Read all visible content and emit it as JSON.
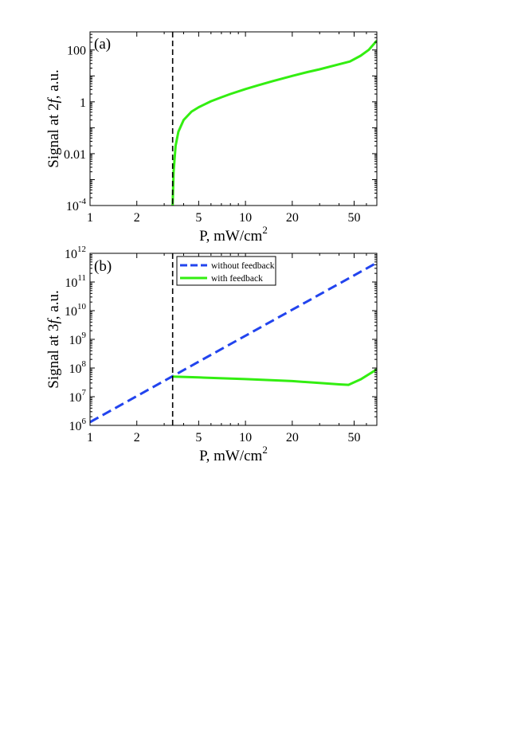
{
  "chart_data": [
    {
      "type": "line",
      "panel_label": "(a)",
      "xlabel": "P, mW/cm",
      "xlabel_sup": "2",
      "ylabel_pre": "Signal at 2",
      "ylabel_f": "f",
      "ylabel_post": ", a.u.",
      "x_scale": "log",
      "y_scale": "log",
      "xlim": [
        1,
        70
      ],
      "ylim": [
        0.0001,
        500
      ],
      "x_ticks": [
        1,
        2,
        5,
        10,
        20,
        50
      ],
      "x_ticklabels": [
        "1",
        "2",
        "5",
        "10",
        "20",
        "50"
      ],
      "y_ticks": [
        0.0001,
        0.01,
        1,
        100
      ],
      "y_ticklabels": [
        {
          "base": "10",
          "exp": "-4"
        },
        {
          "base": "0.01",
          "exp": ""
        },
        {
          "base": "1",
          "exp": ""
        },
        {
          "base": "100",
          "exp": ""
        }
      ],
      "threshold_line": {
        "x": 3.4,
        "color": "#000000",
        "style": "dashed"
      },
      "series": [
        {
          "color": "#33ee11",
          "style": "solid",
          "x": [
            3.4,
            3.45,
            3.55,
            3.7,
            4.0,
            4.5,
            5.0,
            6.0,
            7.0,
            8.0,
            10,
            12,
            15,
            20,
            25,
            30,
            40,
            47,
            55,
            62,
            70
          ],
          "y": [
            0.0001,
            0.002,
            0.02,
            0.07,
            0.2,
            0.42,
            0.62,
            1.05,
            1.5,
            2.0,
            3.1,
            4.3,
            6.3,
            10,
            14,
            18,
            28,
            36,
            60,
            100,
            230
          ]
        }
      ]
    },
    {
      "type": "line",
      "panel_label": "(b)",
      "xlabel": "P, mW/cm",
      "xlabel_sup": "2",
      "ylabel_pre": "Signal at 3",
      "ylabel_f": "f",
      "ylabel_post": ", a.u.",
      "x_scale": "log",
      "y_scale": "log",
      "xlim": [
        1,
        70
      ],
      "ylim": [
        1000000,
        1000000000000
      ],
      "x_ticks": [
        1,
        2,
        5,
        10,
        20,
        50
      ],
      "x_ticklabels": [
        "1",
        "2",
        "5",
        "10",
        "20",
        "50"
      ],
      "y_ticks": [
        1000000,
        10000000,
        100000000,
        1000000000,
        10000000000,
        100000000000,
        1000000000000
      ],
      "y_ticklabels": [
        {
          "base": "10",
          "exp": "6"
        },
        {
          "base": "10",
          "exp": "7"
        },
        {
          "base": "10",
          "exp": "8"
        },
        {
          "base": "10",
          "exp": "9"
        },
        {
          "base": "10",
          "exp": "10"
        },
        {
          "base": "10",
          "exp": "11"
        },
        {
          "base": "10",
          "exp": "12"
        }
      ],
      "threshold_line": {
        "x": 3.4,
        "color": "#000000",
        "style": "dashed"
      },
      "legend": {
        "placement": "top-left"
      },
      "series": [
        {
          "name": "without feedback",
          "color": "#2244ee",
          "style": "dashed",
          "x": [
            1,
            70
          ],
          "y": [
            1300000,
            470000000000
          ]
        },
        {
          "name": "with feedback",
          "color": "#33ee11",
          "style": "solid",
          "x": [
            3.4,
            5,
            10,
            20,
            30,
            40,
            46,
            55,
            70
          ],
          "y": [
            50000000,
            47000000,
            41000000,
            35000000,
            30000000,
            27000000,
            26000000,
            40000000,
            90000000
          ]
        }
      ]
    }
  ]
}
